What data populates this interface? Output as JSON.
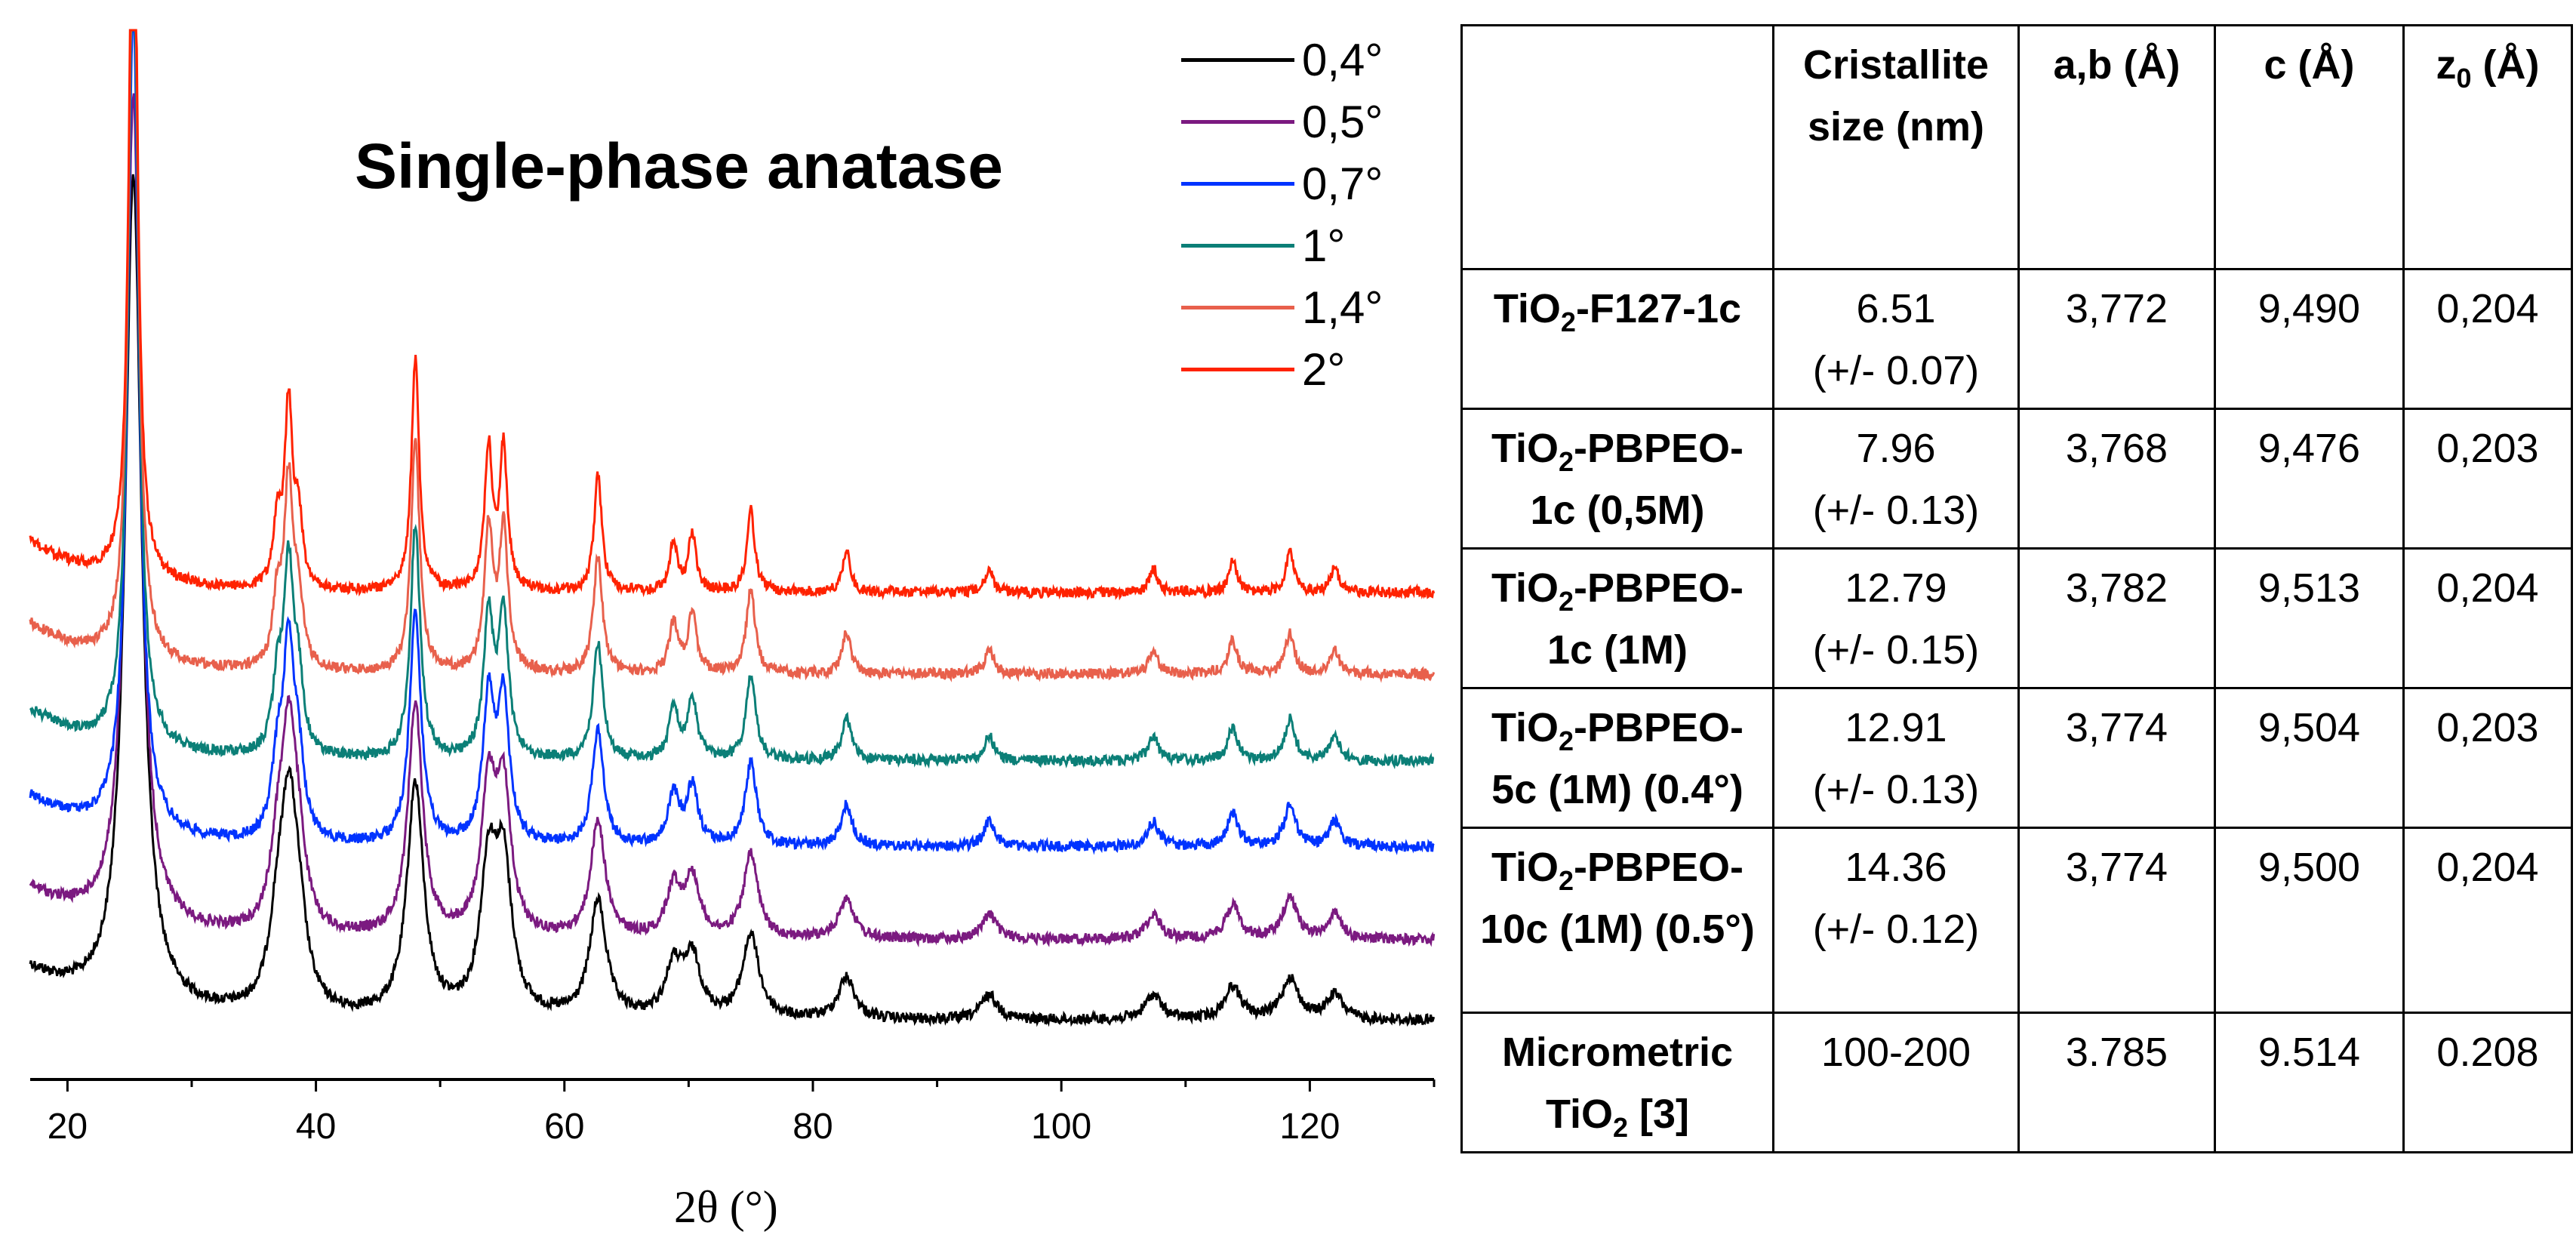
{
  "chart_data": {
    "type": "line",
    "title": "Single-phase anatase",
    "xlabel": "2θ (°)",
    "ylabel": "",
    "xlim": [
      17,
      130
    ],
    "xticks": [
      20,
      40,
      60,
      80,
      100,
      120
    ],
    "legend_position": "top-right",
    "peaks": [
      25.3,
      36.9,
      37.8,
      38.6,
      48.0,
      53.9,
      55.1,
      62.7,
      68.8,
      70.3,
      75.0,
      82.7,
      94.2,
      107.4,
      113.8,
      118.4,
      122.0
    ],
    "peak_heights": [
      1.0,
      0.08,
      0.22,
      0.08,
      0.28,
      0.17,
      0.17,
      0.14,
      0.06,
      0.07,
      0.1,
      0.05,
      0.03,
      0.03,
      0.04,
      0.05,
      0.03
    ],
    "series": [
      {
        "name": "0,4°",
        "color": "#000000",
        "fwhm": 1.6
      },
      {
        "name": "0,5°",
        "color": "#7b1a80",
        "fwhm": 1.4
      },
      {
        "name": "0,7°",
        "color": "#0033ff",
        "fwhm": 1.1
      },
      {
        "name": "1°",
        "color": "#0b7f77",
        "fwhm": 0.95
      },
      {
        "name": "1,4°",
        "color": "#e8604c",
        "fwhm": 0.85
      },
      {
        "name": "2°",
        "color": "#ff2200",
        "fwhm": 0.75
      }
    ]
  },
  "table": {
    "headers": [
      "",
      "Cristallite size (nm)",
      "a,b (Å)",
      "c (Å)",
      "z0 (Å)"
    ],
    "rows": [
      {
        "sample_main": "TiO",
        "sample_sub": "2",
        "sample_rest": "-F127-1c",
        "size": "6.51",
        "size_err": "(+/- 0.07)",
        "ab": "3,772",
        "c": "9,490",
        "z0": "0,204"
      },
      {
        "sample_main": "TiO",
        "sample_sub": "2",
        "sample_rest": "-PBPEO-1c (0,5M)",
        "size": "7.96",
        "size_err": "(+/- 0.13)",
        "ab": "3,768",
        "c": "9,476",
        "z0": "0,203"
      },
      {
        "sample_main": "TiO",
        "sample_sub": "2",
        "sample_rest": "-PBPEO-1c (1M)",
        "size": "12.79",
        "size_err": "(+/- 0.15)",
        "ab": "3,782",
        "c": "9,513",
        "z0": "0,204"
      },
      {
        "sample_main": "TiO",
        "sample_sub": "2",
        "sample_rest": "-PBPEO-5c (1M) (0.4°)",
        "size": "12.91",
        "size_err": "(+/- 0.13)",
        "ab": "3,774",
        "c": "9,504",
        "z0": "0,203"
      },
      {
        "sample_main": "TiO",
        "sample_sub": "2",
        "sample_rest": "-PBPEO-10c (1M) (0.5°)",
        "size": "14.36",
        "size_err": "(+/- 0.12)",
        "ab": "3,774",
        "c": "9,500",
        "z0": "0,204"
      },
      {
        "sample_main": "Micrometric TiO",
        "sample_sub": "2",
        "sample_rest": " [3]",
        "size": "100-200",
        "size_err": "",
        "ab": "3.785",
        "c": "9.514",
        "z0": "0.208"
      }
    ]
  }
}
